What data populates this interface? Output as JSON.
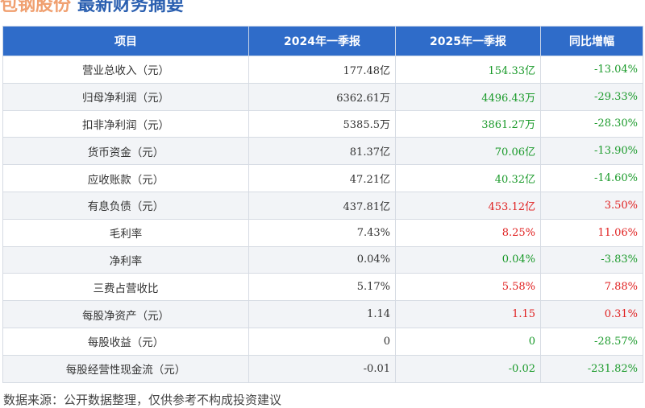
{
  "title": {
    "company": "包钢股份",
    "subtitle": "最新财务摘要"
  },
  "colors": {
    "header": "#2f6cc9",
    "up": "#e02020",
    "down": "#1a9a2a"
  },
  "headers": [
    "项目",
    "2024年一季报",
    "2025年一季报",
    "同比增幅"
  ],
  "rows": [
    [
      "营业总收入（元）",
      "177.48亿",
      "154.33亿",
      "-13.04%",
      "g"
    ],
    [
      "归母净利润（元）",
      "6362.61万",
      "4496.43万",
      "-29.33%",
      "g"
    ],
    [
      "扣非净利润（元）",
      "5385.5万",
      "3861.27万",
      "-28.30%",
      "g"
    ],
    [
      "货币资金（元）",
      "81.37亿",
      "70.06亿",
      "-13.90%",
      "g"
    ],
    [
      "应收账款（元）",
      "47.21亿",
      "40.32亿",
      "-14.60%",
      "g"
    ],
    [
      "有息负债（元）",
      "437.81亿",
      "453.12亿",
      "3.50%",
      "r"
    ],
    [
      "毛利率",
      "7.43%",
      "8.25%",
      "11.06%",
      "r"
    ],
    [
      "净利率",
      "0.04%",
      "0.04%",
      "-3.83%",
      "g"
    ],
    [
      "三费占营收比",
      "5.17%",
      "5.58%",
      "7.88%",
      "r"
    ],
    [
      "每股净资产（元）",
      "1.14",
      "1.15",
      "0.31%",
      "r"
    ],
    [
      "每股收益（元）",
      "0",
      "0",
      "-28.57%",
      "g"
    ],
    [
      "每股经营性现金流（元）",
      "-0.01",
      "-0.02",
      "-231.82%",
      "g"
    ]
  ],
  "footer": "数据来源：公开数据整理，仅供参考不构成投资建议"
}
